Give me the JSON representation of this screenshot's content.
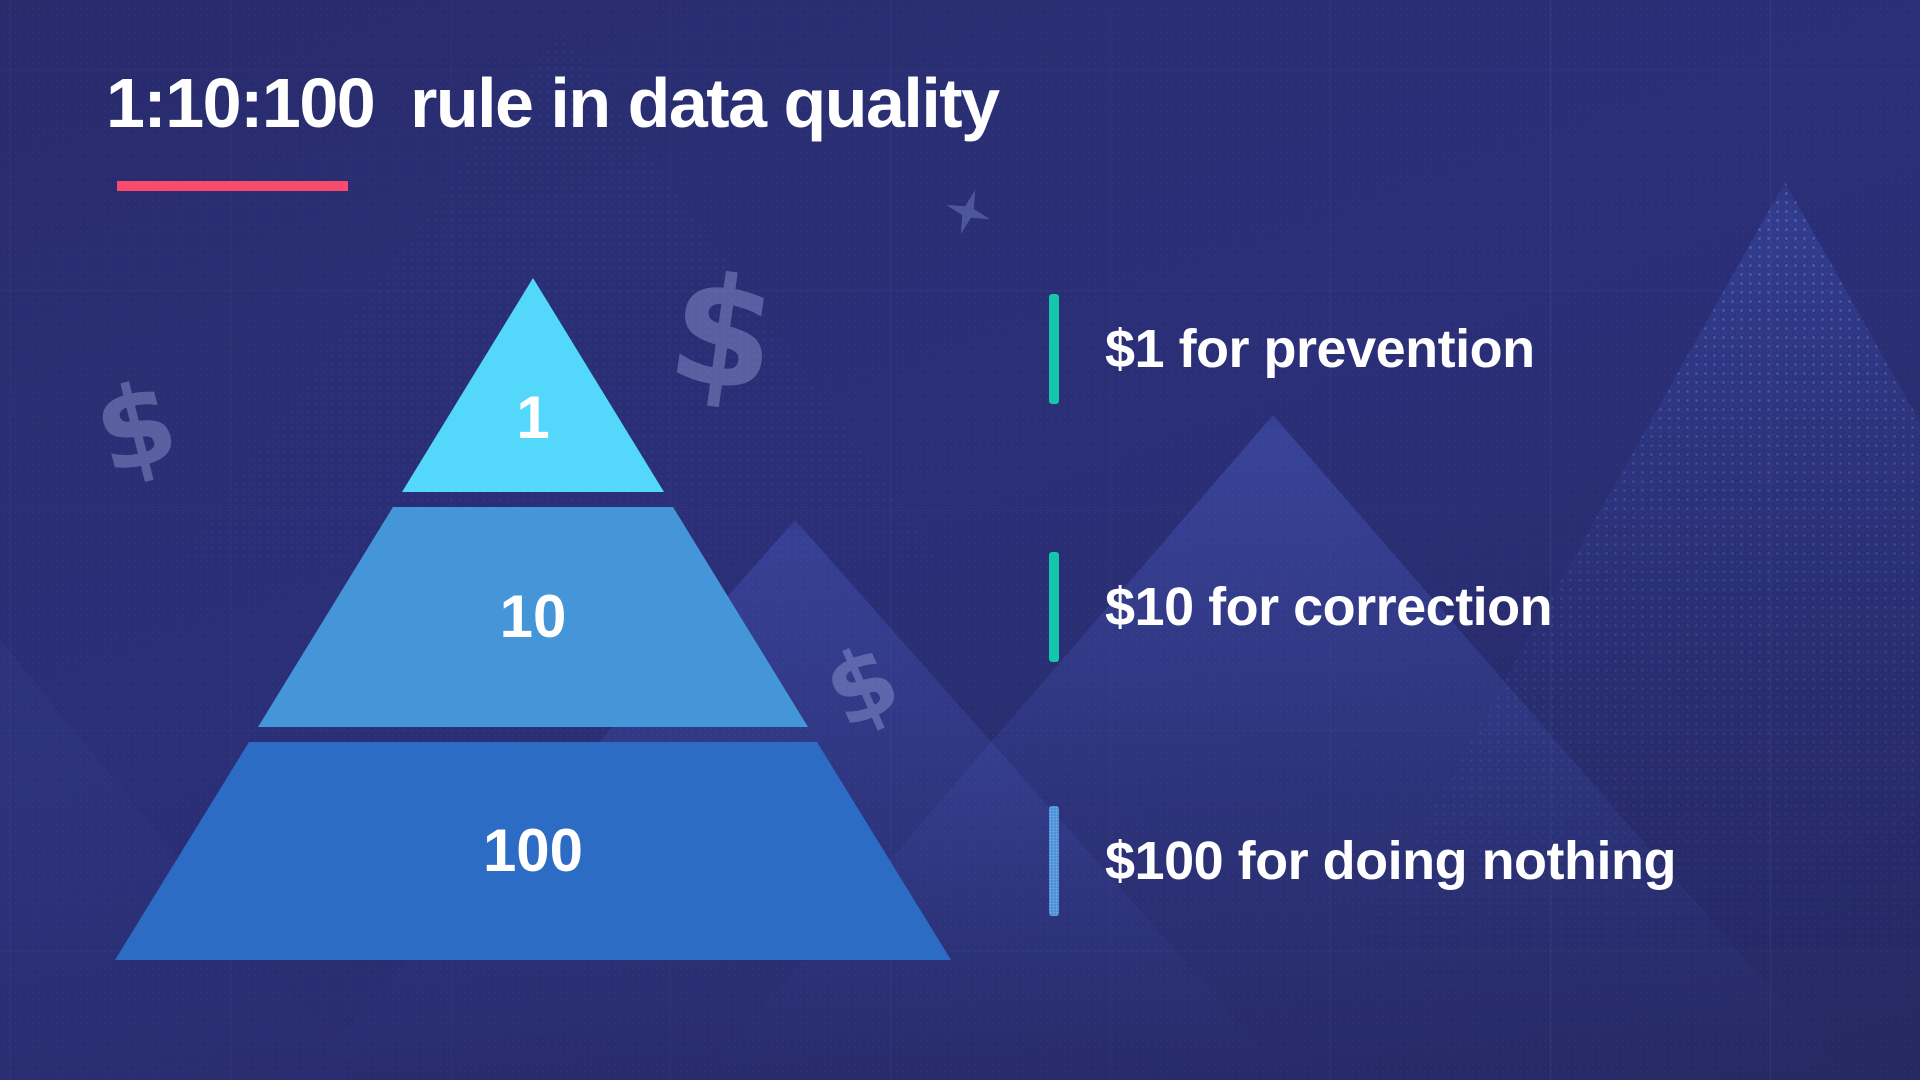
{
  "title": {
    "text": "1:10:100  rule in data quality",
    "underline_color": "#f94b6e",
    "text_color": "#ffffff"
  },
  "pyramid": {
    "type": "pyramid-3-tier",
    "tiers": [
      {
        "label": "1",
        "value": 1,
        "color": "#53d7fb"
      },
      {
        "label": "10",
        "value": 10,
        "color": "#4496d9"
      },
      {
        "label": "100",
        "value": 100,
        "color": "#2c6cc5"
      }
    ]
  },
  "legend": {
    "items": [
      {
        "text": "$1 for prevention",
        "bar_color": "#12c7ab"
      },
      {
        "text": "$10 for correction",
        "bar_color": "#12c7ab"
      },
      {
        "text": "$100 for doing nothing",
        "bar_color": "#4a90d8"
      }
    ]
  },
  "background": {
    "base_color": "#292d72",
    "decorations": [
      "dollar-sign-watermark",
      "dollar-sign-watermark",
      "dollar-sign-watermark",
      "sparkle-icon",
      "mountain-silhouettes",
      "faint-grid"
    ]
  }
}
